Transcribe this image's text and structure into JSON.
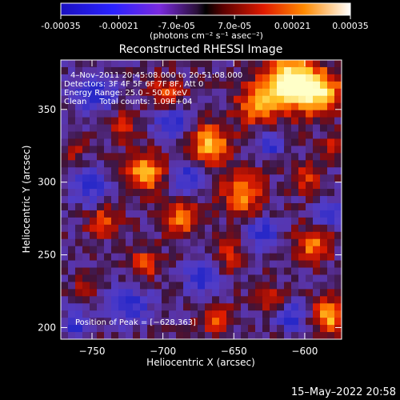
{
  "colorbar": {
    "ticks": [
      "-0.00035",
      "-0.00021",
      "-7.0e-05",
      "7.0e-05",
      "0.00021",
      "0.00035"
    ],
    "unit_label": "(photons cm⁻² s⁻¹ asec⁻²)",
    "range": [
      -0.00035,
      0.00035
    ]
  },
  "chart_data": {
    "type": "heatmap",
    "title": "Reconstructed RHESSI Image",
    "xlabel": "Heliocentric X (arcsec)",
    "ylabel": "Heliocentric Y (arcsec)",
    "xlim": [
      -772,
      -574
    ],
    "ylim": [
      192,
      384
    ],
    "xticks": [
      -750,
      -700,
      -650,
      -600
    ],
    "yticks": [
      200,
      250,
      300,
      350
    ],
    "xtick_labels": [
      "−750",
      "−700",
      "−650",
      "−600"
    ],
    "ytick_labels": [
      "200",
      "250",
      "300",
      "350"
    ],
    "annotations": [
      "4–Nov–2011 20:45:08.000 to 20:51:08.000",
      "Detectors: 3F 4F 5F 6F 7F 8F, Att 0",
      "Energy Range: 25.0 – 50.0 keV",
      "Clean     Total counts: 1.09E+04",
      "Position of Peak = [−628,363]"
    ],
    "peak": [
      -628,
      363
    ],
    "grid": false
  },
  "footer": {
    "timestamp": "15–May–2022 20:58"
  }
}
